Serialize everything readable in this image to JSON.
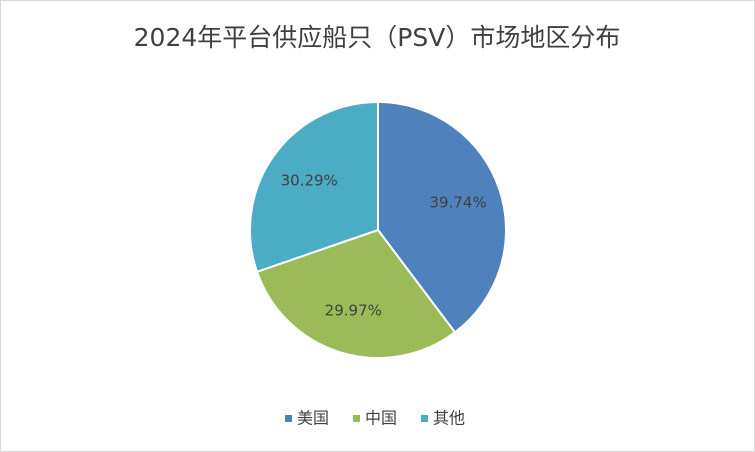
{
  "chart_data": {
    "type": "pie",
    "title": "2024年平台供应船只（PSV）市场地区分布",
    "categories": [
      "美国",
      "中国",
      "其他"
    ],
    "values": [
      39.74,
      29.97,
      30.29
    ],
    "value_labels": [
      "39.74%",
      "29.97%",
      "30.29%"
    ],
    "colors": [
      "#4f81bd",
      "#9bbb59",
      "#4bacc6"
    ],
    "legend": "bottom"
  }
}
